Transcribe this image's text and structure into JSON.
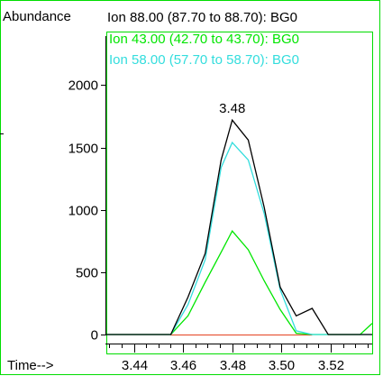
{
  "chart_data": {
    "type": "line",
    "ylabel": "Abundance",
    "xlabel": "Time-->",
    "peak_label": "3.48",
    "y_ticks": [
      0,
      500,
      1000,
      1500,
      2000
    ],
    "x_ticks": [
      3.44,
      3.46,
      3.48,
      3.5,
      3.52
    ],
    "x_tick_labels": [
      "3.44",
      "3.46",
      "3.48",
      "3.50",
      "3.52"
    ],
    "xlim": [
      3.4288,
      3.5369
    ],
    "ylim": [
      0,
      2430
    ],
    "series": [
      {
        "name": "Ion  88.00 (87.70 to 88.70): BG0",
        "color": "#000000",
        "x": [
          3.4288,
          3.455,
          3.462,
          3.469,
          3.4755,
          3.48,
          3.4865,
          3.493,
          3.4995,
          3.506,
          3.5125,
          3.519,
          3.5255,
          3.532,
          3.5369
        ],
        "y": [
          0,
          0,
          300,
          650,
          1400,
          1720,
          1560,
          1020,
          380,
          150,
          210,
          0,
          0,
          0,
          0
        ]
      },
      {
        "name": "Ion  43.00 (42.70 to 43.70): BG0",
        "color": "#00e600",
        "x": [
          3.4288,
          3.455,
          3.462,
          3.469,
          3.4755,
          3.48,
          3.4865,
          3.493,
          3.4995,
          3.506,
          3.5125,
          3.519,
          3.5255,
          3.532,
          3.5369
        ],
        "y": [
          0,
          0,
          150,
          420,
          660,
          830,
          680,
          430,
          200,
          10,
          0,
          0,
          0,
          0,
          90
        ]
      },
      {
        "name": "Ion  58.00 (57.70 to 58.70): BG0",
        "color": "#33dddd",
        "x": [
          3.4288,
          3.455,
          3.462,
          3.469,
          3.4755,
          3.48,
          3.4865,
          3.493,
          3.4995,
          3.506,
          3.5125,
          3.519,
          3.5255,
          3.532,
          3.5369
        ],
        "y": [
          0,
          0,
          240,
          600,
          1340,
          1540,
          1400,
          970,
          360,
          30,
          0,
          0,
          0,
          0,
          0
        ]
      }
    ],
    "baseline_color": "#e85a3c"
  }
}
